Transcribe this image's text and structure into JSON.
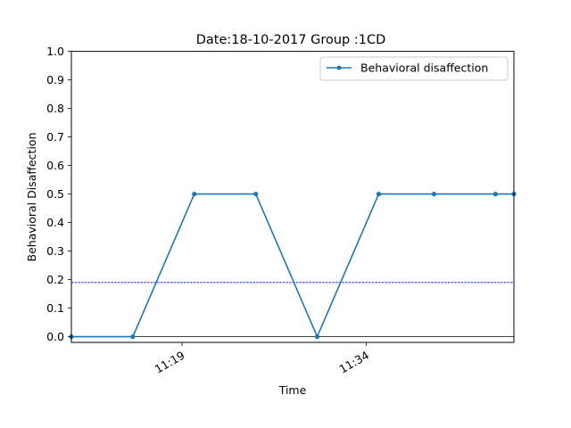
{
  "chart_data": {
    "type": "line",
    "title": "Date:18-10-2017 Group :1CD",
    "xlabel": "Time",
    "ylabel": "Behavioral Disaffection",
    "x_unit": "time of day (HH:MM)",
    "xlim": [
      "11:10",
      "11:46"
    ],
    "ylim": [
      -0.02,
      1.0
    ],
    "x_ticks": [
      {
        "value": "11:19",
        "label": "11:19"
      },
      {
        "value": "11:34",
        "label": "11:34"
      }
    ],
    "y_ticks": [
      "0.0",
      "0.1",
      "0.2",
      "0.3",
      "0.4",
      "0.5",
      "0.6",
      "0.7",
      "0.8",
      "0.9",
      "1.0"
    ],
    "y_tick_values": [
      0,
      0.1,
      0.2,
      0.3,
      0.4,
      0.5,
      0.6,
      0.7,
      0.8,
      0.9,
      1.0
    ],
    "series": [
      {
        "name": "Behavioral disaffection",
        "color": "#1f77b4",
        "x": [
          "11:10",
          "11:15",
          "11:20",
          "11:25",
          "11:30",
          "11:35",
          "11:39.5",
          "11:44.5",
          "11:46"
        ],
        "y": [
          0.0,
          0.0,
          0.5,
          0.5,
          0.0,
          0.5,
          0.5,
          0.5,
          0.5
        ]
      }
    ],
    "reference_lines": [
      {
        "y": 0.19,
        "color": "#0000ff",
        "style": "dashed"
      },
      {
        "y": 0.0,
        "color": "#000000",
        "style": "solid"
      }
    ],
    "legend_position": "top-right",
    "grid": false
  }
}
